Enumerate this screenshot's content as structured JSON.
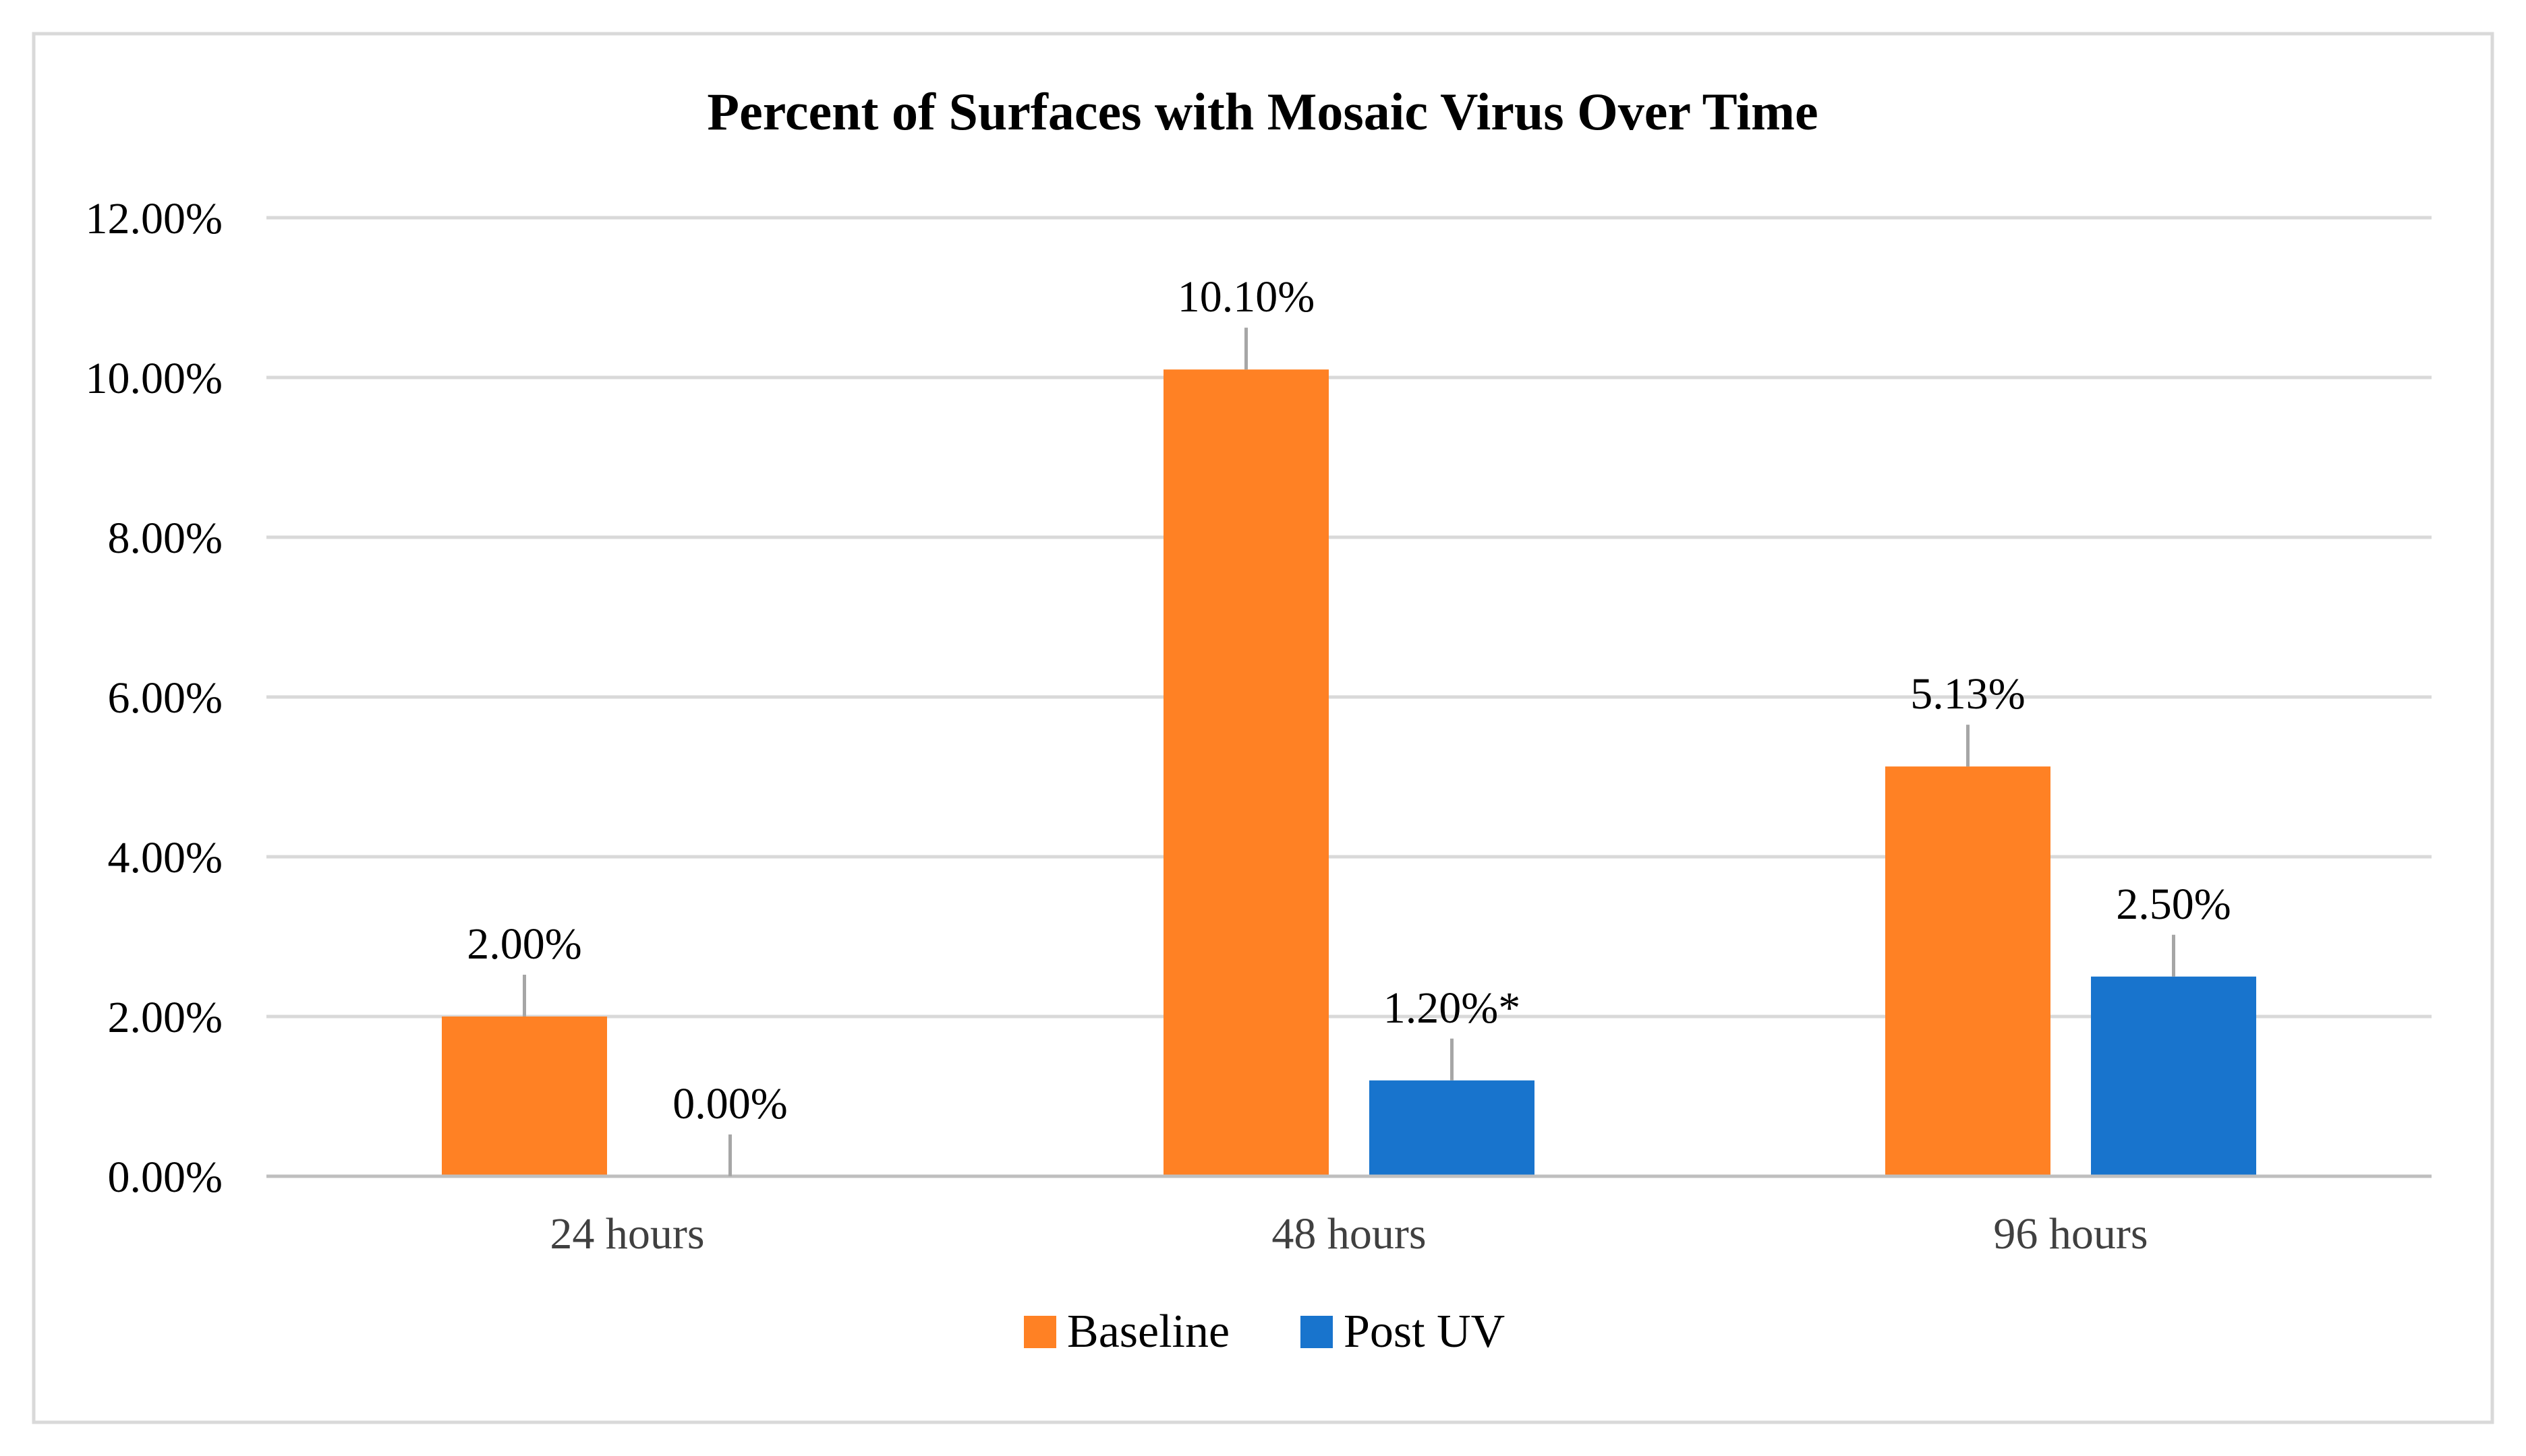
{
  "chart_data": {
    "type": "bar",
    "title": "Percent of Surfaces with Mosaic Virus Over Time",
    "categories": [
      "24 hours",
      "48 hours",
      "96 hours"
    ],
    "series": [
      {
        "name": "Baseline",
        "color": "#FF8124",
        "values": [
          2.0,
          10.1,
          5.13
        ],
        "labels": [
          "2.00%",
          "10.10%",
          "5.13%"
        ]
      },
      {
        "name": "Post UV",
        "color": "#1874CD",
        "values": [
          0.0,
          1.2,
          2.5
        ],
        "labels": [
          "0.00%",
          "1.20%*",
          "2.50%"
        ]
      }
    ],
    "ylim": [
      0,
      12
    ],
    "yticks": [
      0,
      2,
      4,
      6,
      8,
      10,
      12
    ],
    "ytick_labels": [
      "0.00%",
      "2.00%",
      "4.00%",
      "6.00%",
      "8.00%",
      "10.00%",
      "12.00%"
    ],
    "xlabel": "",
    "ylabel": "",
    "grid": true,
    "legend": "bottom-center",
    "colors": {
      "grid": "#D9D9D9",
      "axis": "#BFBFBF",
      "label_leader": "#A6A6A6",
      "text": "#000000",
      "tick_text": "#404040",
      "frame": "#D9D9D9"
    }
  }
}
